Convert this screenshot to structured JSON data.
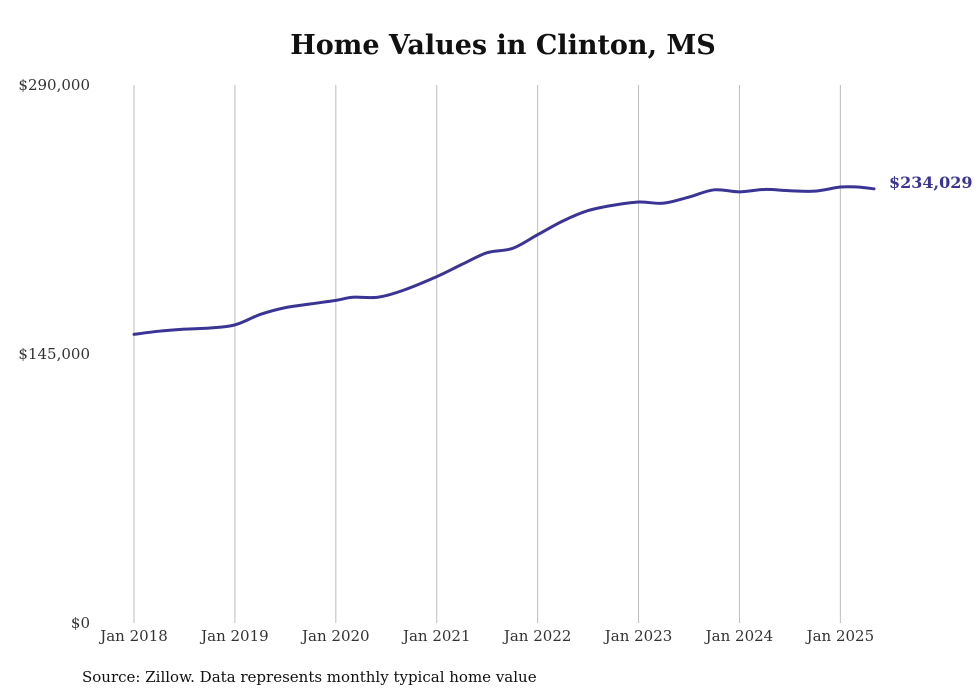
{
  "chart_data": {
    "type": "line",
    "title": "Home Values in Clinton, MS",
    "source_note": "Source: Zillow. Data represents monthly typical home value",
    "y_ticks": [
      {
        "value": 290000,
        "label": "$290,000"
      },
      {
        "value": 145000,
        "label": "$145,000"
      },
      {
        "value": 0,
        "label": "$0"
      }
    ],
    "x_ticks": [
      {
        "label": "Jan 2018",
        "date": "2018-01"
      },
      {
        "label": "Jan 2019",
        "date": "2019-01"
      },
      {
        "label": "Jan 2020",
        "date": "2020-01"
      },
      {
        "label": "Jan 2021",
        "date": "2021-01"
      },
      {
        "label": "Jan 2022",
        "date": "2022-01"
      },
      {
        "label": "Jan 2023",
        "date": "2023-01"
      },
      {
        "label": "Jan 2024",
        "date": "2024-01"
      },
      {
        "label": "Jan 2025",
        "date": "2025-01"
      }
    ],
    "ylim": [
      0,
      290000
    ],
    "xlim": [
      "2018-01",
      "2025-05"
    ],
    "grid": "vertical",
    "line_color": "#3a3494",
    "end_label": "$234,029",
    "series": [
      {
        "points": [
          [
            "2018-01",
            155600
          ],
          [
            "2018-04",
            157300
          ],
          [
            "2018-07",
            158400
          ],
          [
            "2018-10",
            159000
          ],
          [
            "2019-01",
            160700
          ],
          [
            "2019-04",
            166300
          ],
          [
            "2019-07",
            170000
          ],
          [
            "2019-10",
            172000
          ],
          [
            "2020-01",
            173900
          ],
          [
            "2020-03",
            175600
          ],
          [
            "2020-06",
            175600
          ],
          [
            "2020-09",
            179300
          ],
          [
            "2021-01",
            186700
          ],
          [
            "2021-04",
            193300
          ],
          [
            "2021-07",
            199600
          ],
          [
            "2021-10",
            201900
          ],
          [
            "2022-01",
            209300
          ],
          [
            "2022-04",
            216700
          ],
          [
            "2022-07",
            222300
          ],
          [
            "2022-10",
            225200
          ],
          [
            "2023-01",
            226900
          ],
          [
            "2023-04",
            226300
          ],
          [
            "2023-07",
            229600
          ],
          [
            "2023-10",
            233500
          ],
          [
            "2024-01",
            232400
          ],
          [
            "2024-04",
            233700
          ],
          [
            "2024-07",
            233000
          ],
          [
            "2024-10",
            232800
          ],
          [
            "2025-01",
            235000
          ],
          [
            "2025-03",
            235000
          ],
          [
            "2025-05",
            234029
          ]
        ]
      }
    ]
  }
}
